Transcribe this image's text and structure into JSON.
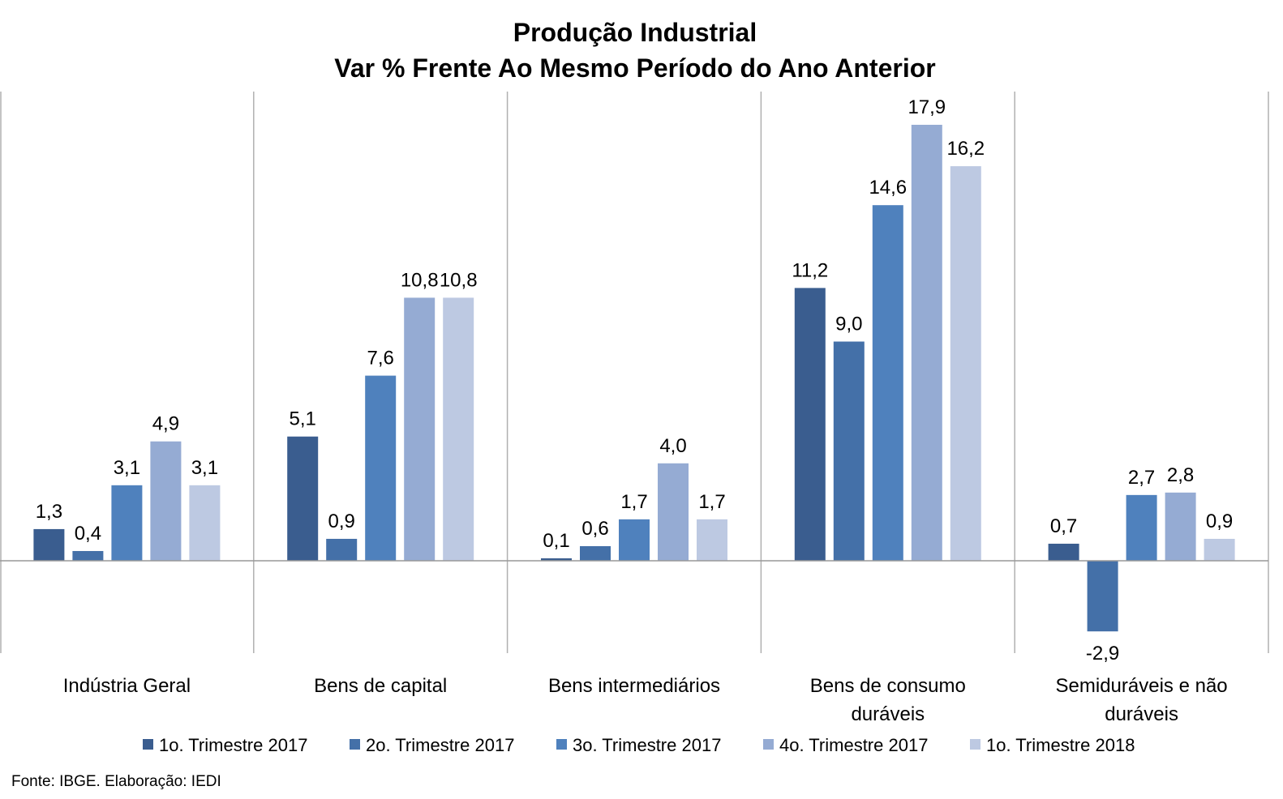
{
  "source_note": "Fonte: IBGE. Elaboração: IEDI",
  "chart_data": {
    "type": "bar",
    "title": [
      "Produção Industrial",
      "Var % Frente Ao Mesmo Período do Ano Anterior"
    ],
    "categories": [
      [
        "Indústria Geral"
      ],
      [
        "Bens de capital"
      ],
      [
        "Bens intermediários"
      ],
      [
        "Bens de consumo",
        "duráveis"
      ],
      [
        "Semiduráveis e não",
        "duráveis"
      ]
    ],
    "series": [
      {
        "name": "1o. Trimestre 2017",
        "color": "#3a5d8f",
        "values": [
          1.3,
          5.1,
          0.1,
          11.2,
          0.7
        ],
        "labels": [
          "1,3",
          "5,1",
          "0,1",
          "11,2",
          "0,7"
        ]
      },
      {
        "name": "2o. Trimestre 2017",
        "color": "#4470a8",
        "values": [
          0.4,
          0.9,
          0.6,
          9.0,
          -2.9
        ],
        "labels": [
          "0,4",
          "0,9",
          "0,6",
          "9,0",
          "-2,9"
        ]
      },
      {
        "name": "3o. Trimestre 2017",
        "color": "#4f81bd",
        "values": [
          3.1,
          7.6,
          1.7,
          14.6,
          2.7
        ],
        "labels": [
          "3,1",
          "7,6",
          "1,7",
          "14,6",
          "2,7"
        ]
      },
      {
        "name": "4o. Trimestre 2017",
        "color": "#95abd3",
        "values": [
          4.9,
          10.8,
          4.0,
          17.9,
          2.8
        ],
        "labels": [
          "4,9",
          "10,8",
          "4,0",
          "17,9",
          "2,8"
        ]
      },
      {
        "name": "1o. Trimestre 2018",
        "color": "#bdc9e2",
        "values": [
          3.1,
          10.8,
          1.7,
          16.2,
          0.9
        ],
        "labels": [
          "3,1",
          "10,8",
          "1,7",
          "16,2",
          "0,9"
        ]
      }
    ],
    "ylim": [
      -3.8,
      19.2
    ],
    "grid": false,
    "legend_position": "bottom"
  }
}
